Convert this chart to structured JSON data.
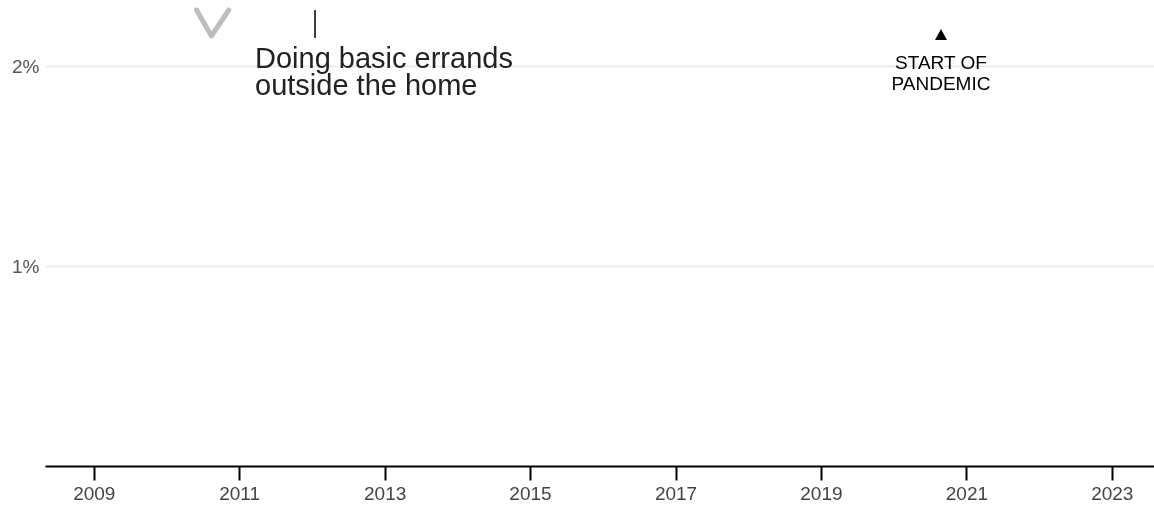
{
  "chart_data": {
    "type": "line",
    "x": [
      "2010-06",
      "2010-08-15",
      "2010-11-10"
    ],
    "series": [
      {
        "color": "#bdbdbd",
        "values": [
          2.28,
          2.15,
          2.28
        ]
      }
    ],
    "xlim": [
      "2008-05",
      "2023-08"
    ],
    "xticks": [
      {
        "value": "2009",
        "label": "2009"
      },
      {
        "value": "2011",
        "label": "2011"
      },
      {
        "value": "2013",
        "label": "2013"
      },
      {
        "value": "2015",
        "label": "2015"
      },
      {
        "value": "2017",
        "label": "2017"
      },
      {
        "value": "2019",
        "label": "2019"
      },
      {
        "value": "2021",
        "label": "2021"
      },
      {
        "value": "2023",
        "label": "2023"
      }
    ],
    "ylim": [
      0,
      2.33
    ],
    "yticks": [
      {
        "value": 1,
        "label": "1%"
      },
      {
        "value": 2,
        "label": "2%"
      }
    ],
    "grid": "y",
    "marker": "none",
    "line_style": "solid",
    "annotations": [
      "Doing basic errands\noutside the home",
      "START OF\nPANDEMIC"
    ]
  }
}
